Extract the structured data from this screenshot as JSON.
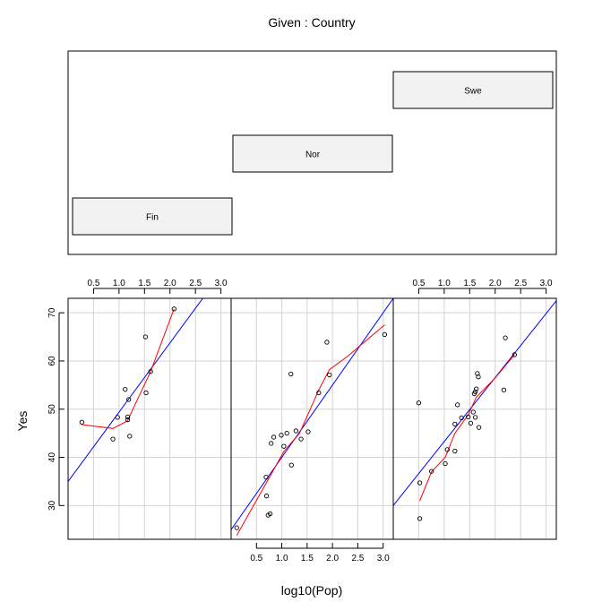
{
  "given_label": "Given : Country",
  "xlabel": "log10(Pop)",
  "ylabel": "Yes",
  "colors": {
    "fit_line": "#0000ff",
    "smooth_line": "#ff0000",
    "grid": "#d3d3d3",
    "strip_fill": "#f2f2f2",
    "points": "#000000"
  },
  "chart_data": {
    "type": "scatter",
    "layout": "coplot",
    "given": "Country",
    "xlim": [
      0.0,
      3.2
    ],
    "ylim": [
      23,
      73
    ],
    "x_ticks": [
      0.5,
      1.0,
      1.5,
      2.0,
      2.5,
      3.0
    ],
    "x_tick_labels": [
      "0.5",
      "1.0",
      "1.5",
      "2.0",
      "2.5",
      "3.0"
    ],
    "y_ticks": [
      30,
      40,
      50,
      60,
      70
    ],
    "y_tick_labels": [
      "30",
      "40",
      "50",
      "60",
      "70"
    ],
    "grid": true,
    "panels": [
      {
        "country": "Fin",
        "points": [
          [
            0.27,
            47.3
          ],
          [
            0.88,
            43.8
          ],
          [
            0.97,
            48.3
          ],
          [
            1.12,
            54.1
          ],
          [
            1.17,
            48.4
          ],
          [
            1.17,
            47.8
          ],
          [
            1.19,
            52.0
          ],
          [
            1.21,
            44.4
          ],
          [
            1.52,
            65.0
          ],
          [
            1.53,
            53.4
          ],
          [
            1.62,
            57.8
          ],
          [
            2.08,
            70.8
          ]
        ],
        "fit_line": [
          [
            0.0,
            35.0
          ],
          [
            3.2,
            81.0
          ]
        ],
        "smooth": [
          [
            0.27,
            46.8
          ],
          [
            0.88,
            46.0
          ],
          [
            1.17,
            47.6
          ],
          [
            1.25,
            49.5
          ],
          [
            1.62,
            57.8
          ],
          [
            2.08,
            70.8
          ]
        ]
      },
      {
        "country": "Nor",
        "points": [
          [
            0.11,
            25.4
          ],
          [
            0.69,
            35.9
          ],
          [
            0.7,
            32.0
          ],
          [
            0.73,
            28.0
          ],
          [
            0.77,
            28.3
          ],
          [
            0.79,
            42.9
          ],
          [
            0.84,
            44.2
          ],
          [
            0.99,
            44.6
          ],
          [
            1.04,
            42.3
          ],
          [
            1.1,
            45.0
          ],
          [
            1.18,
            57.3
          ],
          [
            1.19,
            38.4
          ],
          [
            1.28,
            45.5
          ],
          [
            1.38,
            43.8
          ],
          [
            1.52,
            45.3
          ],
          [
            1.73,
            53.4
          ],
          [
            1.89,
            63.9
          ],
          [
            1.94,
            57.1
          ],
          [
            3.03,
            65.5
          ]
        ],
        "fit_line": [
          [
            0.0,
            25.0
          ],
          [
            3.2,
            73.0
          ]
        ],
        "smooth": [
          [
            0.11,
            23.8
          ],
          [
            0.7,
            34.8
          ],
          [
            1.04,
            41.2
          ],
          [
            1.35,
            45.0
          ],
          [
            1.73,
            54.0
          ],
          [
            1.94,
            58.2
          ],
          [
            2.3,
            61.0
          ],
          [
            3.03,
            67.5
          ]
        ]
      },
      {
        "country": "Swe",
        "points": [
          [
            0.5,
            51.3
          ],
          [
            0.52,
            34.7
          ],
          [
            0.52,
            27.3
          ],
          [
            0.75,
            37.1
          ],
          [
            1.02,
            38.7
          ],
          [
            1.06,
            41.6
          ],
          [
            1.21,
            41.3
          ],
          [
            1.21,
            46.9
          ],
          [
            1.26,
            50.9
          ],
          [
            1.34,
            48.2
          ],
          [
            1.47,
            48.4
          ],
          [
            1.52,
            47.1
          ],
          [
            1.57,
            49.4
          ],
          [
            1.59,
            53.2
          ],
          [
            1.61,
            53.6
          ],
          [
            1.61,
            48.3
          ],
          [
            1.63,
            54.2
          ],
          [
            1.65,
            57.4
          ],
          [
            1.67,
            56.7
          ],
          [
            1.68,
            46.2
          ],
          [
            2.17,
            54.0
          ],
          [
            2.2,
            64.8
          ],
          [
            2.38,
            61.3
          ]
        ],
        "fit_line": [
          [
            0.0,
            30.0
          ],
          [
            3.2,
            72.5
          ]
        ],
        "smooth": [
          [
            0.52,
            31.0
          ],
          [
            0.75,
            37.0
          ],
          [
            1.02,
            40.0
          ],
          [
            1.21,
            45.0
          ],
          [
            1.47,
            48.8
          ],
          [
            1.63,
            52.5
          ],
          [
            2.0,
            56.5
          ],
          [
            2.38,
            61.3
          ]
        ]
      }
    ],
    "given_intervals": [
      {
        "label": "Fin",
        "level": 1
      },
      {
        "label": "Nor",
        "level": 2
      },
      {
        "label": "Swe",
        "level": 3
      }
    ]
  }
}
